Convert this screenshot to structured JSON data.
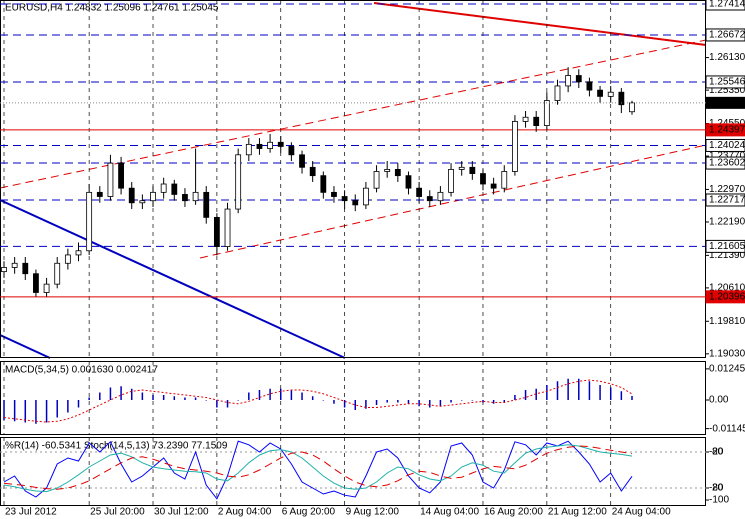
{
  "chart_data": {
    "type": "candlestick",
    "title": "EURUSD,H4  1.24832 1.25096 1.24761 1.25045",
    "open": [
      1.21,
      1.211,
      1.212,
      1.2095,
      1.205,
      1.207,
      1.212,
      1.214,
      1.215,
      1.229,
      1.228,
      1.236,
      1.23,
      1.2265,
      1.227,
      1.229,
      1.231,
      1.2285,
      1.227,
      1.229,
      1.223,
      1.216,
      1.225,
      1.238,
      1.2405,
      1.2395,
      1.241,
      1.24,
      1.238,
      1.235,
      1.233,
      1.229,
      1.228,
      1.227,
      1.226,
      1.23,
      1.234,
      1.2345,
      1.233,
      1.23,
      1.228,
      1.227,
      1.229,
      1.2345,
      1.235,
      1.2335,
      1.231,
      1.23,
      1.234,
      1.246,
      1.247,
      1.245,
      1.251,
      1.2545,
      1.257,
      1.2555,
      1.2535,
      1.252,
      1.253,
      1.24832
    ],
    "high": [
      1.2125,
      1.2135,
      1.2135,
      1.2105,
      1.2085,
      1.2135,
      1.2155,
      1.217,
      1.231,
      1.2305,
      1.238,
      1.2375,
      1.2315,
      1.2285,
      1.2305,
      1.2325,
      1.232,
      1.23,
      1.2395,
      1.2305,
      1.224,
      1.2265,
      1.2395,
      1.242,
      1.242,
      1.243,
      1.2425,
      1.241,
      1.239,
      1.2365,
      1.234,
      1.2305,
      1.2295,
      1.2285,
      1.2315,
      1.2355,
      1.2365,
      1.236,
      1.234,
      1.2315,
      1.2295,
      1.2305,
      1.236,
      1.2365,
      1.2365,
      1.2345,
      1.2325,
      1.2355,
      1.2475,
      1.2485,
      1.2485,
      1.253,
      1.256,
      1.259,
      1.2585,
      1.2565,
      1.2545,
      1.2545,
      1.254,
      1.25096
    ],
    "low": [
      1.2085,
      1.2095,
      1.208,
      1.204,
      1.204,
      1.206,
      1.2105,
      1.2125,
      1.214,
      1.2265,
      1.227,
      1.2285,
      1.225,
      1.225,
      1.2255,
      1.2275,
      1.227,
      1.2255,
      1.226,
      1.2215,
      1.2139,
      1.215,
      1.224,
      1.2365,
      1.238,
      1.2385,
      1.2385,
      1.2365,
      1.2335,
      1.2315,
      1.2275,
      1.2265,
      1.225,
      1.2245,
      1.225,
      1.229,
      1.2325,
      1.2315,
      1.2285,
      1.2265,
      1.2255,
      1.226,
      1.228,
      1.233,
      1.232,
      1.2295,
      1.2285,
      1.229,
      1.233,
      1.2445,
      1.2435,
      1.244,
      1.25,
      1.253,
      1.254,
      1.252,
      1.2505,
      1.2505,
      1.248,
      1.24761
    ],
    "close": [
      1.211,
      1.212,
      1.2095,
      1.205,
      1.207,
      1.212,
      1.214,
      1.215,
      1.229,
      1.228,
      1.236,
      1.23,
      1.2265,
      1.227,
      1.229,
      1.231,
      1.2285,
      1.227,
      1.229,
      1.223,
      1.216,
      1.225,
      1.238,
      1.2405,
      1.2395,
      1.241,
      1.24,
      1.238,
      1.235,
      1.233,
      1.229,
      1.228,
      1.227,
      1.226,
      1.23,
      1.234,
      1.2345,
      1.233,
      1.23,
      1.228,
      1.227,
      1.229,
      1.2345,
      1.235,
      1.2335,
      1.231,
      1.23,
      1.234,
      1.246,
      1.247,
      1.245,
      1.251,
      1.2545,
      1.257,
      1.2555,
      1.2535,
      1.252,
      1.253,
      1.25,
      1.25045
    ],
    "ylim": [
      1.1893,
      1.2751
    ],
    "yticks": [
      {
        "value": 1.2613,
        "label": "1.26130"
      },
      {
        "value": 1.2535,
        "label": "1.25350"
      },
      {
        "value": 1.2455,
        "label": "1.24550"
      },
      {
        "value": 1.2377,
        "label": "1.23770"
      },
      {
        "value": 1.2297,
        "label": "1.22970"
      },
      {
        "value": 1.2219,
        "label": "1.22190"
      },
      {
        "value": 1.2139,
        "label": "1.21390"
      },
      {
        "value": 1.2061,
        "label": "1.20610"
      },
      {
        "value": 1.1981,
        "label": "1.19810"
      },
      {
        "value": 1.1903,
        "label": "1.19030"
      }
    ],
    "levels": [
      {
        "value": 1.27414,
        "label": "1.27414",
        "color": "#0000c0",
        "style": "dashed"
      },
      {
        "value": 1.26672,
        "label": "1.26672",
        "color": "#0000c0",
        "style": "dashed"
      },
      {
        "value": 1.25546,
        "label": "1.25546",
        "color": "#0000c0",
        "style": "dashed"
      },
      {
        "value": 1.24397,
        "label": "1.24397",
        "color": "#e00000",
        "style": "solid"
      },
      {
        "value": 1.24024,
        "label": "1.24024",
        "color": "#0000c0",
        "style": "dashed"
      },
      {
        "value": 1.23602,
        "label": "1.23602",
        "color": "#0000c0",
        "style": "dashed"
      },
      {
        "value": 1.22717,
        "label": "1.22717",
        "color": "#0000c0",
        "style": "dashed"
      },
      {
        "value": 1.21605,
        "label": "1.21605",
        "color": "#0000c0",
        "style": "dashed"
      },
      {
        "value": 1.20396,
        "label": "1.20396",
        "color": "#e00000",
        "style": "solid"
      }
    ],
    "last_price_label": "1.25045",
    "xticks": [
      {
        "value": 0,
        "label": "23 Jul 2012"
      },
      {
        "value": 8,
        "label": "25 Jul 20:00"
      },
      {
        "value": 14,
        "label": "30 Jul 12:00"
      },
      {
        "value": 20,
        "label": "2 Aug 04:00"
      },
      {
        "value": 26,
        "label": "6 Aug 20:00"
      },
      {
        "value": 32,
        "label": "9 Aug 12:00"
      },
      {
        "value": 39,
        "label": "14 Aug 04:00"
      },
      {
        "value": 45,
        "label": "16 Aug 20:00"
      },
      {
        "value": 51,
        "label": "21 Aug 12:00"
      },
      {
        "value": 57,
        "label": "24 Aug 04:00"
      }
    ],
    "grid": true,
    "macd": {
      "title": "MACD(5,34,5) 0.001630 0.002417",
      "ylim": [
        -0.0136,
        0.0156
      ],
      "yticks": [
        {
          "value": 0.01245,
          "label": "0.01245"
        },
        {
          "value": 0,
          "label": "0.00"
        },
        {
          "value": -0.01145,
          "label": "-0.01145"
        }
      ],
      "series": [
        {
          "color": "#0000c0",
          "style": "histogram",
          "values": [
            -0.008,
            -0.0085,
            -0.009,
            -0.0095,
            -0.009,
            -0.007,
            -0.005,
            -0.003,
            0.001,
            0.003,
            0.005,
            0.0055,
            0.0045,
            0.003,
            0.002,
            0.002,
            0.0015,
            0.001,
            0.001,
            0,
            -0.003,
            -0.003,
            0,
            0.003,
            0.004,
            0.0045,
            0.0045,
            0.004,
            0.003,
            0.0015,
            0,
            -0.0015,
            -0.003,
            -0.004,
            -0.0035,
            -0.002,
            -0.001,
            -0.001,
            -0.0015,
            -0.0025,
            -0.003,
            -0.0025,
            -0.001,
            0,
            0,
            -0.001,
            -0.0015,
            -0.001,
            0.002,
            0.004,
            0.0045,
            0.006,
            0.0075,
            0.0085,
            0.0085,
            0.0075,
            0.006,
            0.005,
            0.0035,
            0.00163
          ]
        },
        {
          "color": "#e00000",
          "style": "dotted",
          "values": [
            -0.007,
            -0.0075,
            -0.008,
            -0.0085,
            -0.0088,
            -0.0085,
            -0.0075,
            -0.006,
            -0.004,
            -0.002,
            0,
            0.002,
            0.0035,
            0.004,
            0.0035,
            0.003,
            0.0025,
            0.002,
            0.0015,
            0.001,
            0,
            -0.001,
            -0.0015,
            -0.0005,
            0.001,
            0.0025,
            0.0035,
            0.004,
            0.004,
            0.0035,
            0.0025,
            0.001,
            -0.0005,
            -0.002,
            -0.003,
            -0.003,
            -0.0025,
            -0.002,
            -0.0015,
            -0.0015,
            -0.002,
            -0.0025,
            -0.002,
            -0.0015,
            -0.001,
            -0.0005,
            -0.001,
            -0.001,
            0,
            0.001,
            0.0025,
            0.0035,
            0.005,
            0.0065,
            0.0075,
            0.008,
            0.0075,
            0.0065,
            0.005,
            0.002417
          ]
        }
      ]
    },
    "stochastic": {
      "title": "%R(14) -60.5341 Stoch(14,5,13) 73.2390 77.1509",
      "ylim": [
        -8.3,
        105
      ],
      "yticks": [
        80,
        20
      ],
      "y2lim": [
        -108.3,
        5
      ],
      "y2ticks": [
        -20,
        -80,
        -100
      ],
      "series": [
        {
          "color": "#0000ff",
          "style": "solid",
          "axis": "y2",
          "values": [
            -70,
            -60,
            -85,
            -95,
            -80,
            -40,
            -30,
            -35,
            -5,
            -20,
            -3,
            -40,
            -70,
            -60,
            -45,
            -30,
            -55,
            -65,
            -20,
            -75,
            -98,
            -60,
            -2,
            -8,
            -20,
            -5,
            -15,
            -40,
            -70,
            -80,
            -90,
            -85,
            -92,
            -95,
            -60,
            -20,
            -15,
            -30,
            -60,
            -80,
            -88,
            -70,
            -10,
            -5,
            -25,
            -70,
            -80,
            -50,
            -3,
            -8,
            -25,
            -5,
            -10,
            -2,
            -20,
            -40,
            -70,
            -55,
            -85,
            -60.5341
          ]
        },
        {
          "color": "#20b2aa",
          "style": "solid",
          "values": [
            25,
            22,
            18,
            15,
            14,
            20,
            30,
            42,
            55,
            65,
            75,
            78,
            72,
            62,
            55,
            52,
            50,
            48,
            47,
            45,
            35,
            32,
            45,
            62,
            75,
            82,
            84,
            80,
            70,
            55,
            40,
            28,
            20,
            18,
            20,
            30,
            45,
            55,
            52,
            42,
            35,
            32,
            40,
            55,
            62,
            58,
            48,
            45,
            62,
            78,
            85,
            88,
            90,
            92,
            90,
            85,
            80,
            78,
            76,
            73.239
          ]
        },
        {
          "color": "#e00000",
          "style": "dashed",
          "values": [
            28,
            26,
            24,
            21,
            19,
            18,
            20,
            25,
            32,
            42,
            52,
            62,
            70,
            72,
            68,
            62,
            56,
            52,
            50,
            48,
            45,
            40,
            38,
            42,
            50,
            60,
            70,
            78,
            80,
            75,
            65,
            52,
            40,
            30,
            24,
            22,
            25,
            32,
            42,
            48,
            46,
            40,
            36,
            38,
            45,
            52,
            56,
            54,
            52,
            58,
            68,
            78,
            84,
            88,
            90,
            89,
            86,
            83,
            80,
            77.1509
          ]
        }
      ]
    }
  }
}
